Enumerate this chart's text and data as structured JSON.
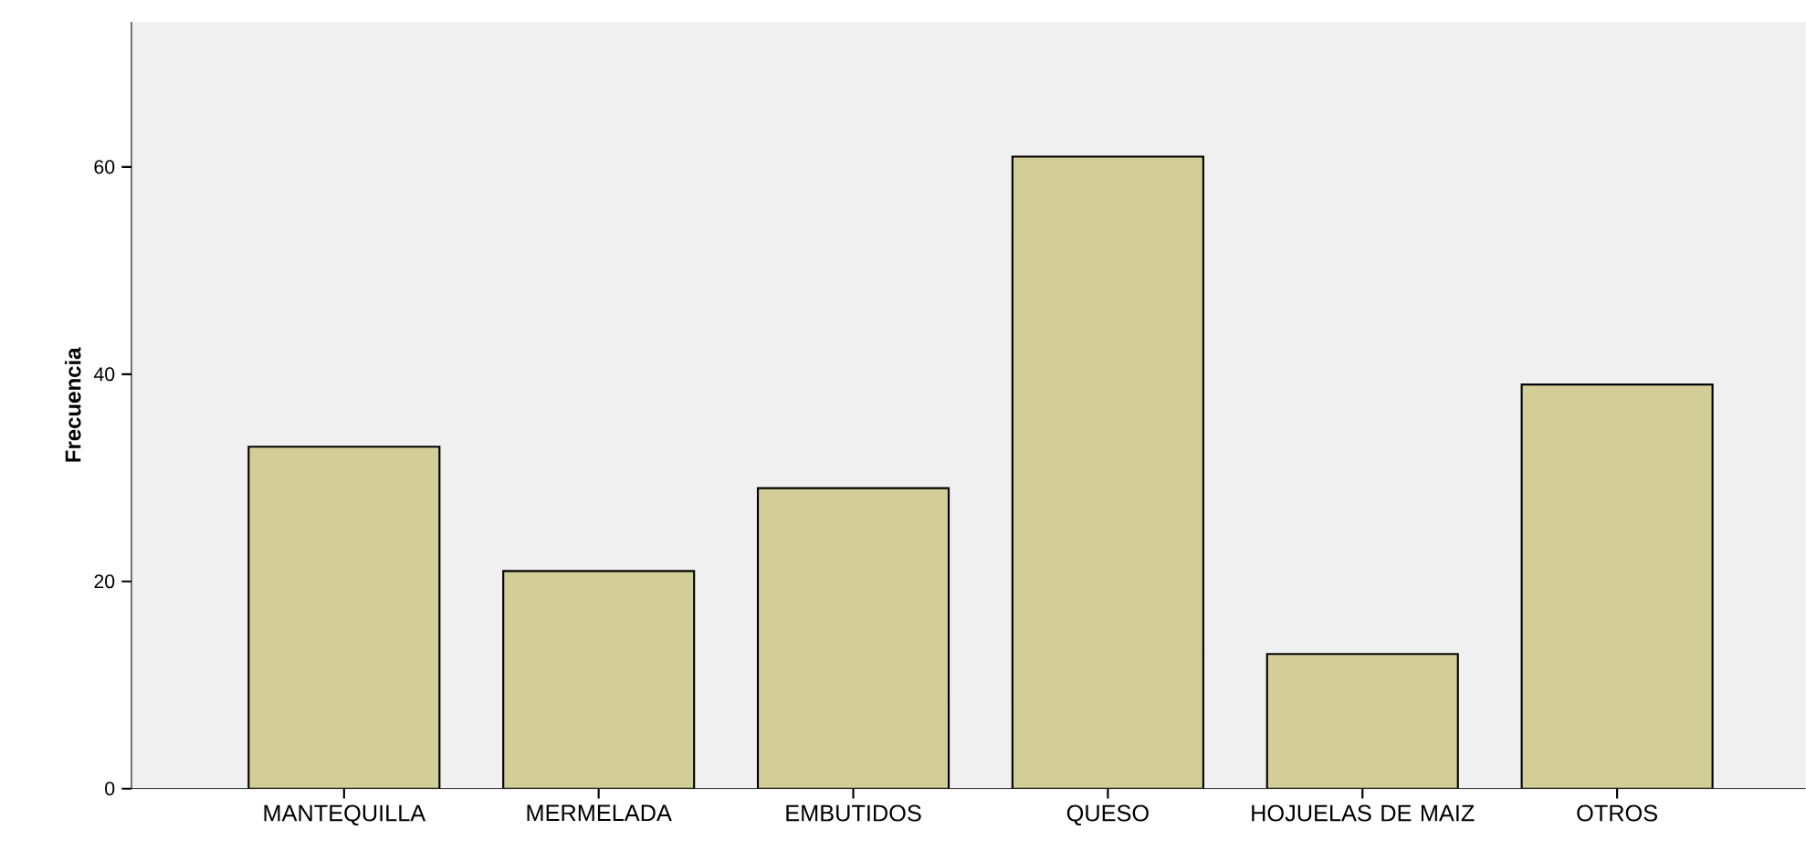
{
  "chart_data": {
    "type": "bar",
    "ylabel": "Frecuencia",
    "categories": [
      "MANTEQUILLA",
      "MERMELADA",
      "EMBUTIDOS",
      "QUESO",
      "HOJUELAS DE MAIZ",
      "OTROS"
    ],
    "values": [
      33,
      21,
      29,
      61,
      13,
      39
    ],
    "color": "#d3ce97",
    "ylim": [
      0,
      74
    ],
    "yticks": [
      0,
      20,
      40,
      60
    ],
    "grid": false
  }
}
